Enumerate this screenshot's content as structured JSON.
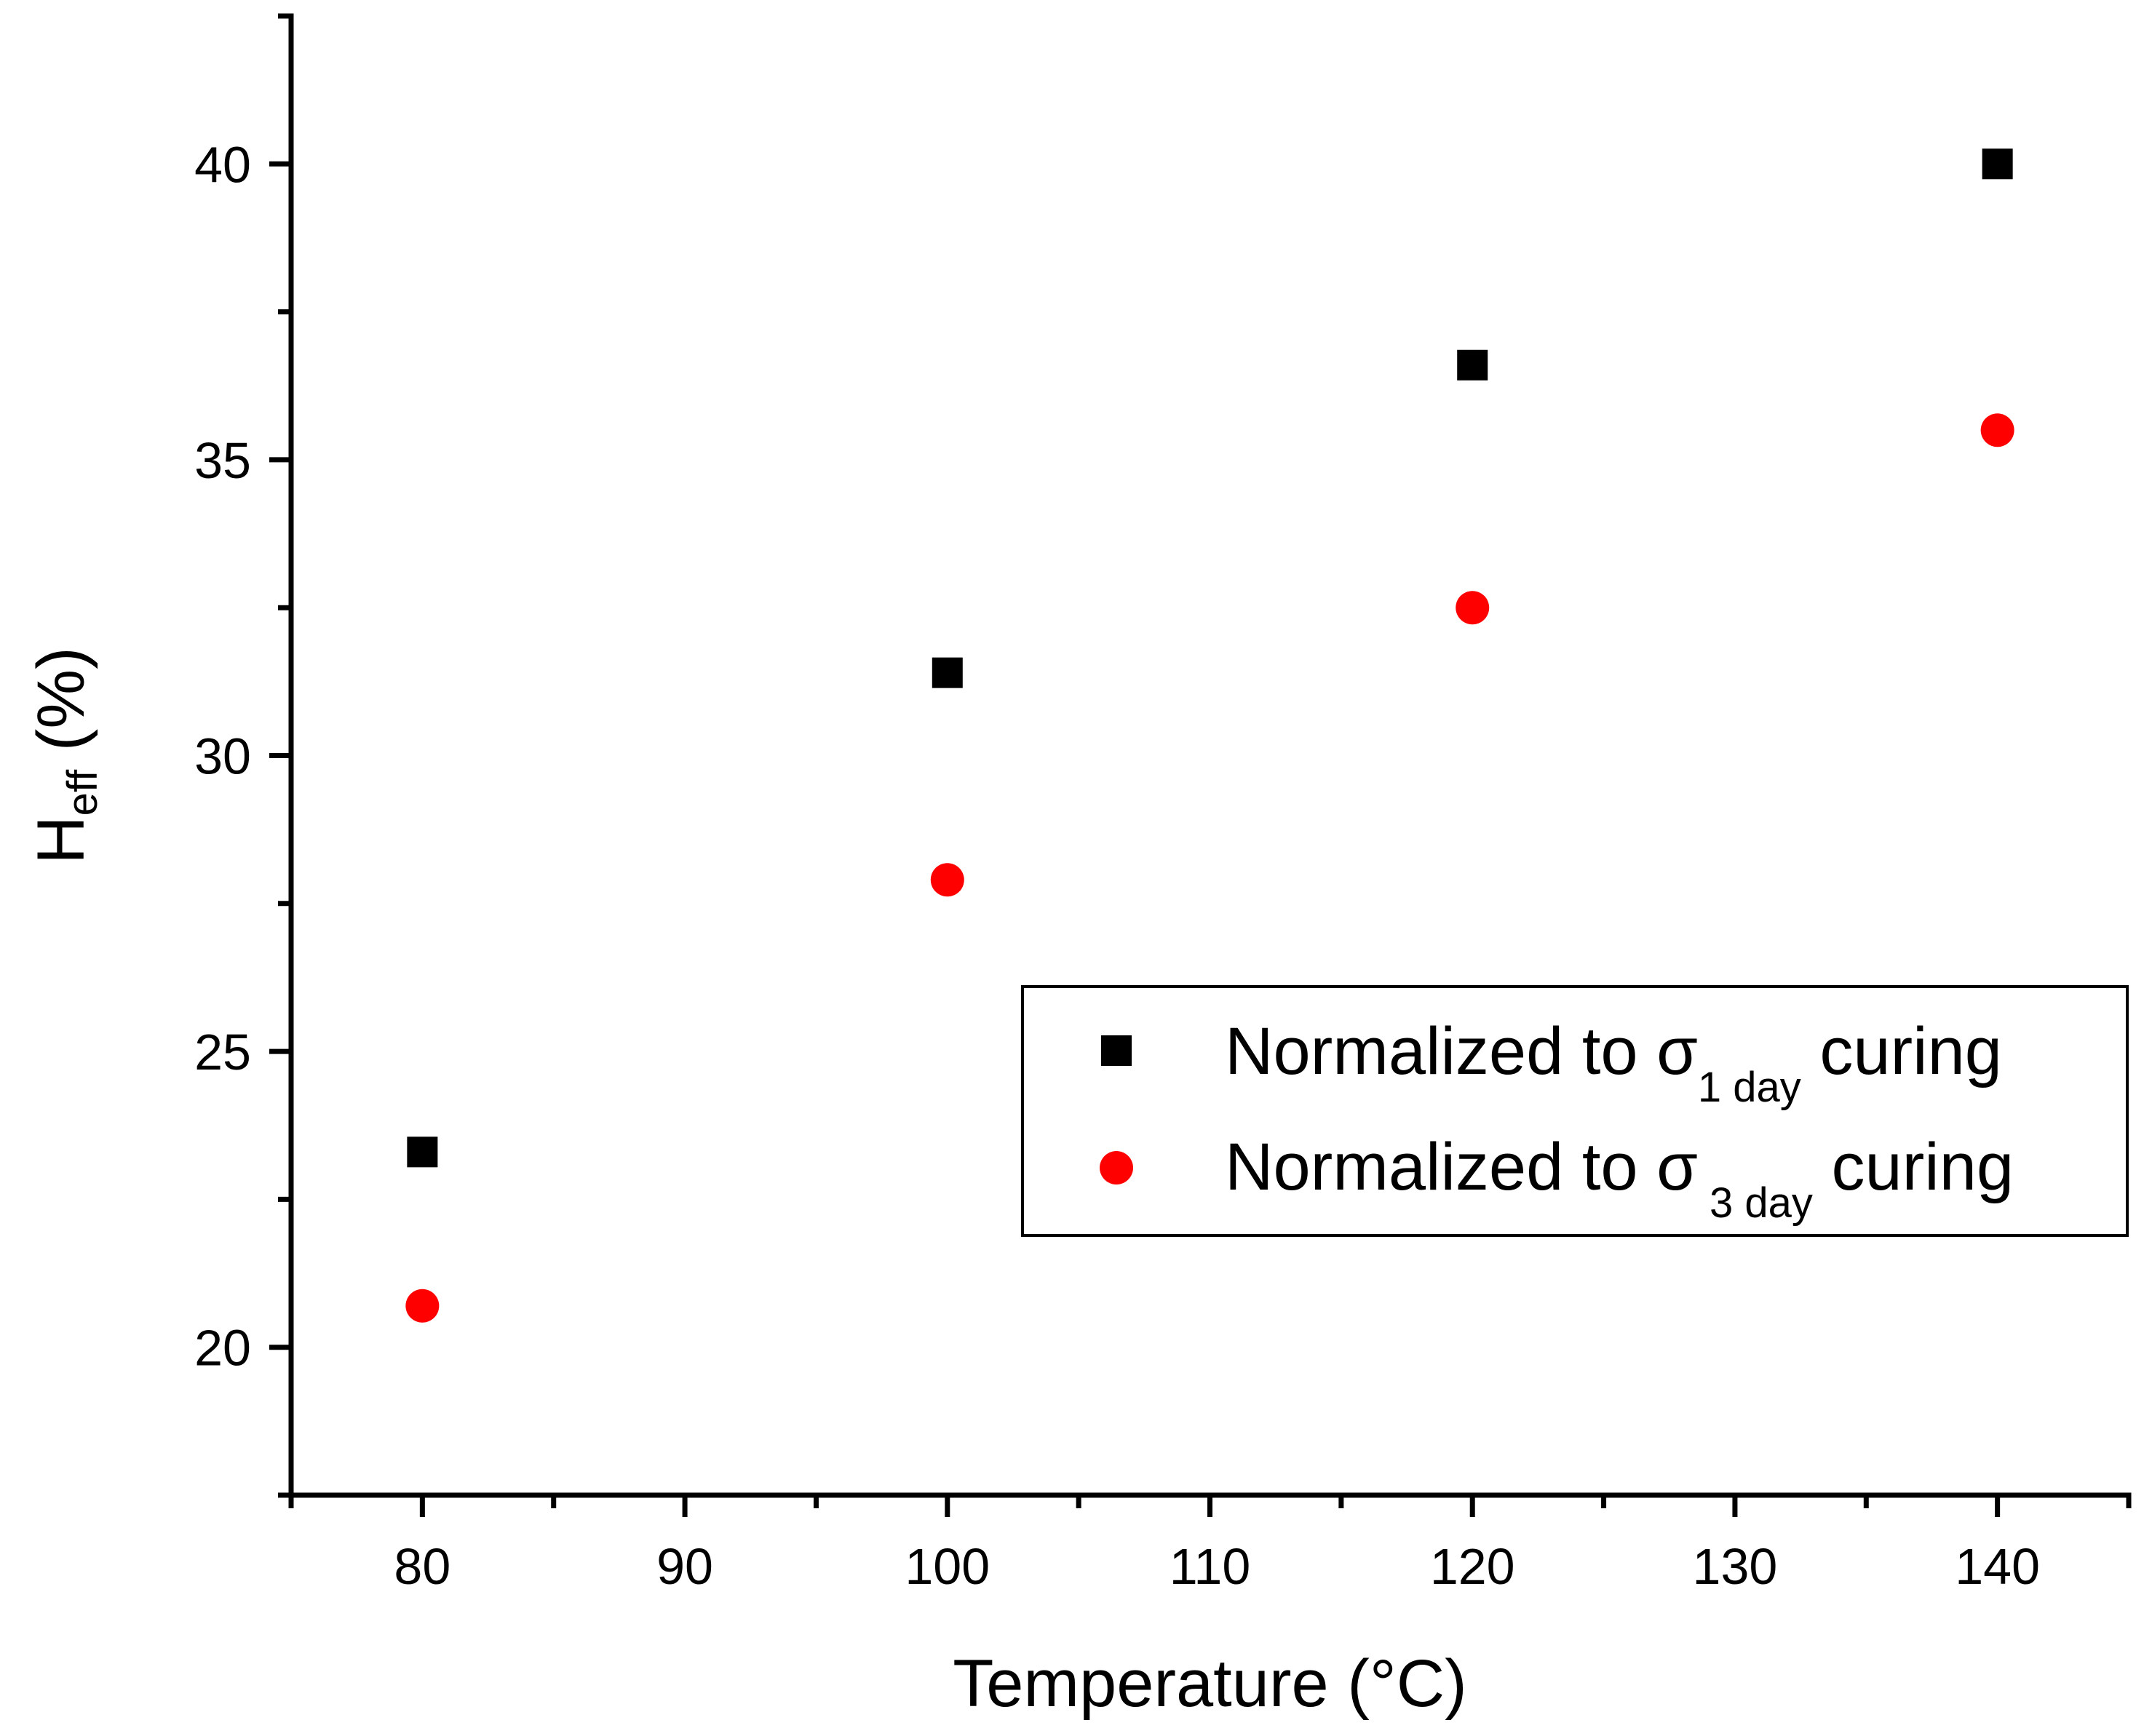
{
  "chart_data": {
    "type": "scatter",
    "title": "",
    "xlabel": "Temperature (°C)",
    "ylabel": {
      "main": "H",
      "sub": "eff",
      "unit": " (%)"
    },
    "xlim": [
      75,
      145
    ],
    "ylim": [
      17.5,
      42.5
    ],
    "x_ticks": [
      80,
      90,
      100,
      110,
      120,
      130,
      140
    ],
    "y_ticks": [
      20,
      25,
      30,
      35,
      40
    ],
    "x_minor_step": 5,
    "y_minor_step": 2.5,
    "grid": false,
    "legend_position": "center-right",
    "series": [
      {
        "name": "Normalized to σ1 day curing",
        "legend": {
          "prefix": "Normalized to σ",
          "sub": "1 day",
          "suffix": " curing"
        },
        "marker": "square",
        "color": "#000000",
        "x": [
          80,
          100,
          120,
          140
        ],
        "y": [
          23.3,
          31.4,
          36.6,
          40.0
        ]
      },
      {
        "name": "Normalized to σ3 day curing",
        "legend": {
          "prefix": "Normalized to σ",
          "sub": " 3 day",
          "suffix": " curing"
        },
        "marker": "circle",
        "color": "#ff0000",
        "x": [
          80,
          100,
          120,
          140
        ],
        "y": [
          20.7,
          27.9,
          32.5,
          35.5
        ]
      }
    ]
  }
}
